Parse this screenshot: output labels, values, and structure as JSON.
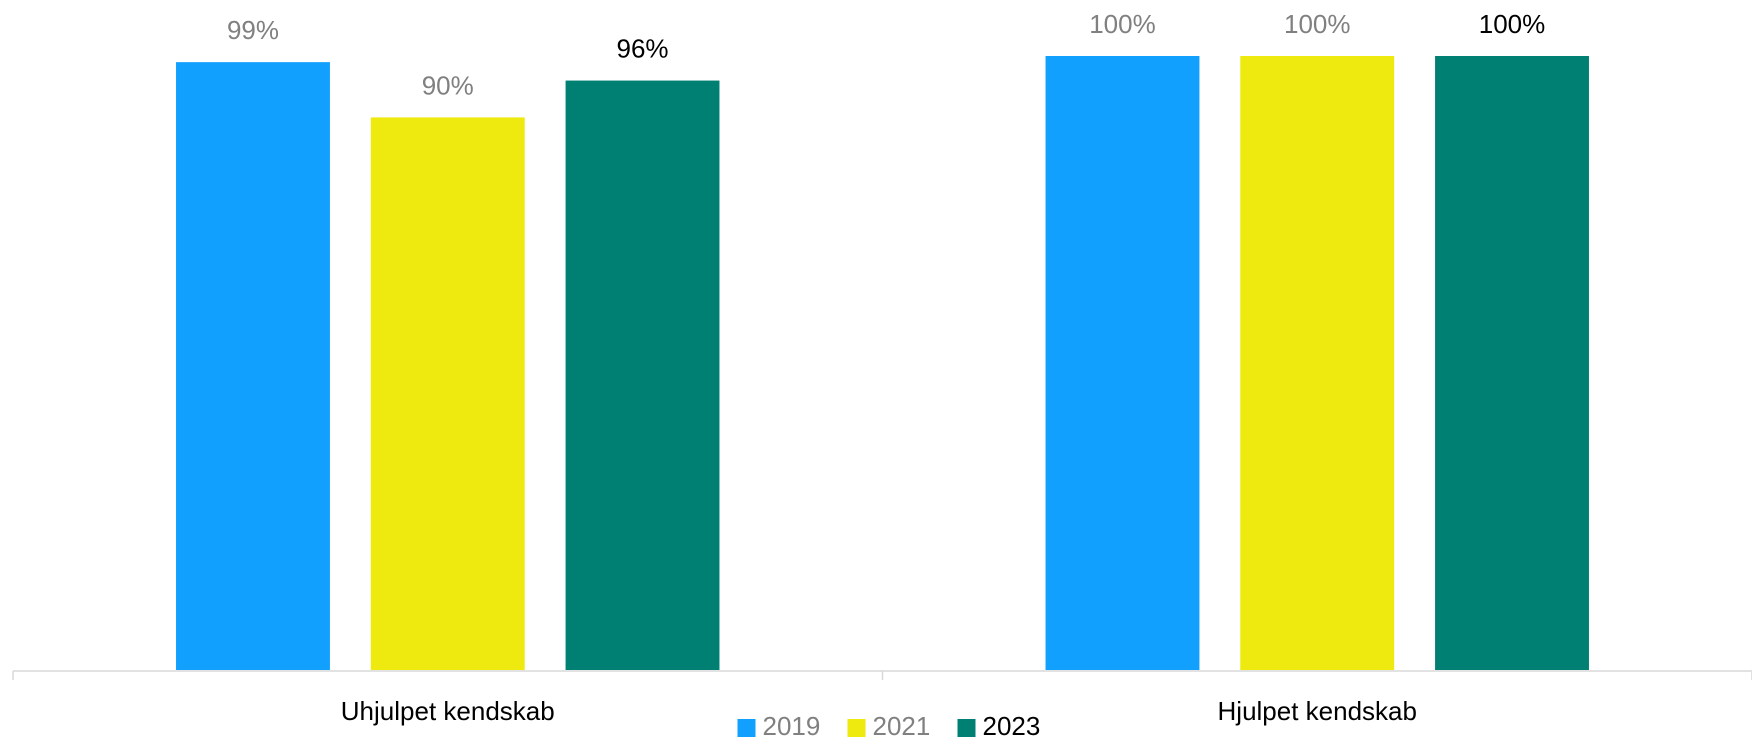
{
  "chart_data": {
    "type": "bar",
    "categories": [
      "Uhjulpet kendskab",
      "Hjulpet kendskab"
    ],
    "series": [
      {
        "name": "2019",
        "color": "#12a0ff",
        "label_color": "#808080",
        "values": [
          99,
          100
        ],
        "value_labels": [
          "99%",
          "100%"
        ]
      },
      {
        "name": "2021",
        "color": "#eeea10",
        "label_color": "#808080",
        "values": [
          90,
          100
        ],
        "value_labels": [
          "90%",
          "100%"
        ]
      },
      {
        "name": "2023",
        "color": "#008073",
        "label_color": "#000000",
        "values": [
          96,
          100
        ],
        "value_labels": [
          "96%",
          "100%"
        ]
      }
    ],
    "ylim": [
      0,
      100
    ],
    "legend": "bottom"
  }
}
